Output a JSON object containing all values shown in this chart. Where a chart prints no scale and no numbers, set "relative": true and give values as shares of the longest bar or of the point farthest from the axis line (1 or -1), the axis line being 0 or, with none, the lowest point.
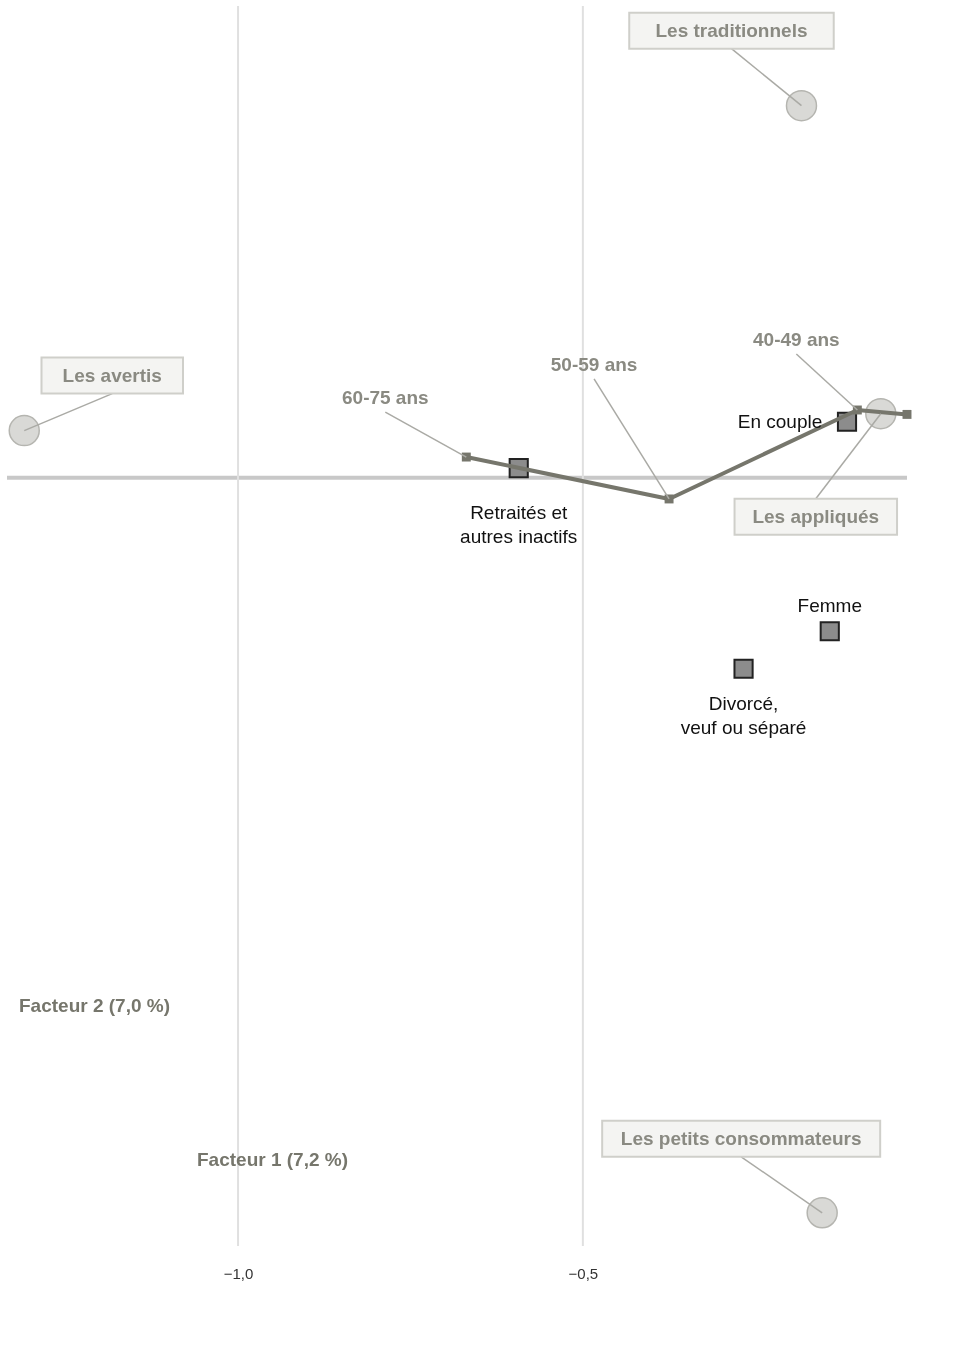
{
  "chart_data": {
    "type": "scatter",
    "relative": true,
    "xlabel": "Facteur 1 (7,2 %)",
    "ylabel": "Facteur 2 (7,0 %)",
    "xlim": [
      -1.335,
      -0.03
    ],
    "xticks": [
      {
        "value": -1.0,
        "label": "−1,0"
      },
      {
        "value": -0.5,
        "label": "−0,5"
      }
    ],
    "grid": "x",
    "tick_labels": "x",
    "series": [
      {
        "type": "scatter",
        "marker": "circle",
        "color": "#d9d9d6",
        "x": [
          -0.183,
          -1.31,
          -0.068,
          -0.153
        ],
        "values": [
          0.506,
          0.064,
          0.087,
          -1
        ]
      },
      {
        "type": "scatter",
        "marker": "square",
        "color": "#8c8c8c",
        "x": [
          -0.593,
          -0.117,
          -0.142,
          -0.267
        ],
        "values": [
          0.013,
          0.076,
          -0.209,
          -0.26
        ]
      },
      {
        "type": "line",
        "marker": "square",
        "color": "#76766c",
        "x": [
          -0.03,
          -0.102,
          -0.375,
          -0.669
        ],
        "values": [
          0.086,
          0.092,
          -0.029,
          0.028
        ]
      }
    ],
    "annotations": [
      {
        "text": "Les traditionnels",
        "x": -0.183,
        "y": 0.506
      },
      {
        "text": "Les avertis",
        "x": -1.31,
        "y": 0.064
      },
      {
        "text": "Les appliqués",
        "x": -0.068,
        "y": 0.087
      },
      {
        "text": "Les petits consommateurs",
        "x": -0.153,
        "y": -1
      },
      {
        "text": "Retraités et\nautres inactifs",
        "x": -0.593,
        "y": 0.013
      },
      {
        "text": "En couple",
        "x": -0.117,
        "y": 0.076
      },
      {
        "text": "Femme",
        "x": -0.142,
        "y": -0.209
      },
      {
        "text": "Divorcé,\nveuf ou séparé",
        "x": -0.267,
        "y": -0.26
      },
      {
        "text": "40-49 ans",
        "x": -0.102,
        "y": 0.092
      },
      {
        "text": "50-59 ans",
        "x": -0.375,
        "y": -0.029
      },
      {
        "text": "60-75 ans",
        "x": -0.669,
        "y": 0.028
      }
    ]
  }
}
